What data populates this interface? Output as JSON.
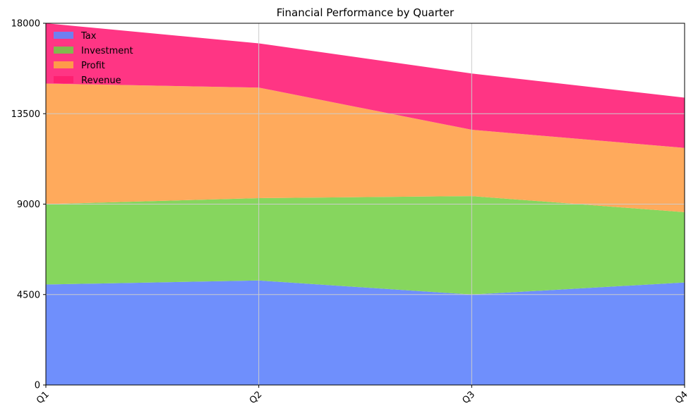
{
  "chart_data": {
    "type": "area",
    "stacked": true,
    "title": "Financial Performance by Quarter",
    "xlabel": "",
    "ylabel": "",
    "categories": [
      "Q1",
      "Q2",
      "Q3",
      "Q4"
    ],
    "ylim": [
      0,
      18000
    ],
    "yticks": [
      "0",
      "4500",
      "9000",
      "13500",
      "18000"
    ],
    "grid": true,
    "legend_position": "top-left",
    "series": [
      {
        "name": "Tax",
        "values": [
          5000,
          5200,
          4500,
          5100
        ],
        "color": "#6f8ffc",
        "legend_color": "#6f7ff0"
      },
      {
        "name": "Investment",
        "values": [
          4000,
          4100,
          4900,
          3500
        ],
        "color": "#86d65e",
        "legend_color": "#82b84e"
      },
      {
        "name": "Profit",
        "values": [
          6000,
          5500,
          3300,
          3200
        ],
        "color": "#ffaa5c",
        "legend_color": "#ff9a4a"
      },
      {
        "name": "Revenue",
        "values": [
          3000,
          2200,
          2800,
          2500
        ],
        "color": "#ff3584",
        "legend_color": "#ff1f70"
      }
    ]
  }
}
